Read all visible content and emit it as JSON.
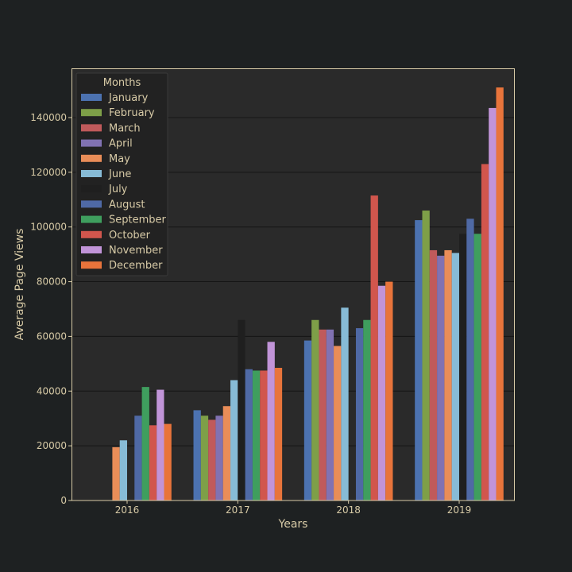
{
  "chart_data": {
    "type": "bar",
    "xlabel": "Years",
    "ylabel": "Average Page Views",
    "ylim": [
      0,
      158000
    ],
    "yticks": [
      "0",
      "20000",
      "40000",
      "60000",
      "80000",
      "100000",
      "120000",
      "140000"
    ],
    "grid": true,
    "legend": {
      "title": "Months",
      "position": "top-left"
    },
    "categories": [
      "2016",
      "2017",
      "2018",
      "2019"
    ],
    "series": [
      {
        "name": "January",
        "color": "#4c72b0",
        "values": [
          null,
          33000,
          58500,
          102500
        ]
      },
      {
        "name": "February",
        "color": "#7e9f48",
        "values": [
          null,
          31000,
          66000,
          106000
        ]
      },
      {
        "name": "March",
        "color": "#c05a5b",
        "values": [
          null,
          29500,
          62500,
          91500
        ]
      },
      {
        "name": "April",
        "color": "#8172b2",
        "values": [
          null,
          31000,
          62500,
          89500
        ]
      },
      {
        "name": "May",
        "color": "#e98d58",
        "values": [
          19500,
          34500,
          56500,
          91500
        ]
      },
      {
        "name": "June",
        "color": "#87bbd6",
        "values": [
          22000,
          44000,
          70500,
          90500
        ]
      },
      {
        "name": "July",
        "color": "#1f1f1f",
        "values": [
          null,
          66000,
          null,
          97500
        ]
      },
      {
        "name": "August",
        "color": "#4f69a5",
        "values": [
          31000,
          48000,
          63000,
          103000
        ]
      },
      {
        "name": "September",
        "color": "#3f9e5e",
        "values": [
          41500,
          47500,
          66000,
          97500
        ]
      },
      {
        "name": "October",
        "color": "#d1564d",
        "values": [
          27500,
          47500,
          111500,
          123000
        ]
      },
      {
        "name": "November",
        "color": "#c194d8",
        "values": [
          40500,
          58000,
          78500,
          143500
        ]
      },
      {
        "name": "December",
        "color": "#e8743b",
        "values": [
          28000,
          48500,
          80000,
          151000
        ]
      }
    ]
  }
}
